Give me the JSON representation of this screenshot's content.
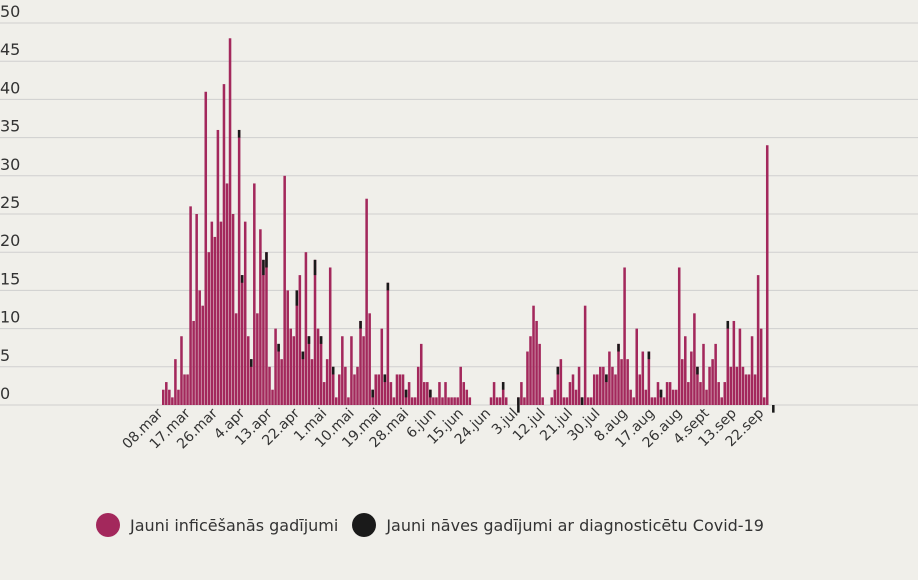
{
  "chart_data": {
    "type": "bar",
    "title": "",
    "xlabel": "",
    "ylabel": "",
    "ylim": [
      0,
      50
    ],
    "yticks": [
      0,
      5,
      10,
      15,
      20,
      25,
      30,
      35,
      40,
      45,
      50
    ],
    "grid": true,
    "colors": {
      "infections": "#a3285c",
      "deaths": "#1a1a1a",
      "background": "#f0efea",
      "grid": "#cfcfcf"
    },
    "x_tick_labels": [
      "08.mar",
      "17.mar",
      "26.mar",
      "4.apr",
      "13.apr",
      "22.apr",
      "1.mai",
      "10.mai",
      "19.mai",
      "28.mai",
      "6.jun",
      "15.jun",
      "24.jun",
      "3.jul",
      "12.jul",
      "21.jul",
      "30.jul",
      "8.aug",
      "17.aug",
      "26.aug",
      "4.sept",
      "13.sep",
      "22.sep"
    ],
    "start_label": "08.mar",
    "series": [
      {
        "name": "Jauni inficēšanās gadījumi",
        "color": "#a3285c",
        "values": [
          2,
          3,
          2,
          1,
          6,
          2,
          9,
          4,
          4,
          26,
          11,
          25,
          15,
          13,
          41,
          20,
          24,
          22,
          36,
          24,
          42,
          29,
          48,
          25,
          12,
          36,
          17,
          24,
          9,
          6,
          29,
          12,
          23,
          19,
          20,
          5,
          2,
          10,
          8,
          6,
          30,
          15,
          10,
          9,
          15,
          17,
          7,
          20,
          9,
          6,
          19,
          10,
          9,
          3,
          6,
          18,
          5,
          1,
          4,
          9,
          5,
          1,
          9,
          4,
          5,
          11,
          9,
          27,
          12,
          2,
          4,
          4,
          10,
          4,
          16,
          3,
          1,
          4,
          4,
          4,
          2,
          3,
          1,
          1,
          5,
          8,
          3,
          3,
          2,
          1,
          1,
          3,
          1,
          3,
          1,
          1,
          1,
          1,
          5,
          3,
          2,
          1,
          0,
          0,
          0,
          0,
          0,
          0,
          1,
          3,
          1,
          1,
          3,
          1,
          0,
          0,
          0,
          1,
          3,
          1,
          7,
          9,
          13,
          11,
          8,
          1,
          0,
          0,
          1,
          2,
          5,
          6,
          1,
          1,
          3,
          4,
          2,
          5,
          1,
          13,
          1,
          1,
          4,
          4,
          5,
          5,
          4,
          7,
          5,
          4,
          8,
          6,
          18,
          6,
          2,
          1,
          10,
          4,
          7,
          2,
          7,
          1,
          1,
          3,
          2,
          1,
          3,
          3,
          2,
          2,
          18,
          6,
          9,
          3,
          7,
          12,
          5,
          3,
          8,
          2,
          5,
          6,
          8,
          3,
          1,
          3,
          11,
          5,
          11,
          5,
          10,
          5,
          4,
          4,
          9,
          4,
          17,
          10,
          1,
          34
        ]
      },
      {
        "name": "Jauni nāves gadījumi ar diagnosticētu Covid-19",
        "color": "#1a1a1a",
        "values": [
          0,
          0,
          0,
          0,
          0,
          0,
          0,
          0,
          0,
          0,
          0,
          0,
          0,
          0,
          0,
          0,
          0,
          0,
          0,
          0,
          0,
          0,
          0,
          0,
          0,
          1,
          1,
          0,
          0,
          1,
          0,
          0,
          0,
          2,
          2,
          0,
          0,
          0,
          1,
          0,
          0,
          0,
          0,
          0,
          2,
          0,
          1,
          0,
          1,
          0,
          2,
          0,
          1,
          0,
          0,
          0,
          1,
          0,
          0,
          0,
          0,
          0,
          0,
          0,
          0,
          1,
          0,
          0,
          0,
          1,
          0,
          0,
          0,
          1,
          1,
          0,
          0,
          0,
          0,
          0,
          1,
          0,
          0,
          0,
          0,
          0,
          0,
          0,
          1,
          0,
          0,
          0,
          0,
          0,
          0,
          0,
          0,
          0,
          0,
          0,
          0,
          0,
          0,
          0,
          0,
          0,
          0,
          0,
          0,
          0,
          0,
          0,
          1,
          0,
          0,
          0,
          0,
          2,
          0,
          0,
          0,
          0,
          0,
          0,
          0,
          0,
          0,
          0,
          0,
          0,
          1,
          0,
          0,
          0,
          0,
          0,
          0,
          0,
          1,
          0,
          0,
          0,
          0,
          0,
          0,
          0,
          1,
          0,
          0,
          0,
          1,
          0,
          0,
          0,
          0,
          0,
          0,
          0,
          0,
          0,
          1,
          0,
          0,
          0,
          1,
          0,
          0,
          0,
          0,
          0,
          0,
          0,
          0,
          0,
          0,
          0,
          1,
          0,
          0,
          0,
          0,
          0,
          0,
          0,
          0,
          0,
          1,
          0,
          0,
          0,
          0,
          0,
          0,
          0,
          0,
          0,
          0,
          0,
          0,
          0,
          0,
          1,
          0
        ]
      }
    ]
  },
  "legend": {
    "infections_label": "Jauni inficēšanās gadījumi",
    "deaths_label": "Jauni nāves gadījumi ar diagnosticētu Covid-19"
  }
}
